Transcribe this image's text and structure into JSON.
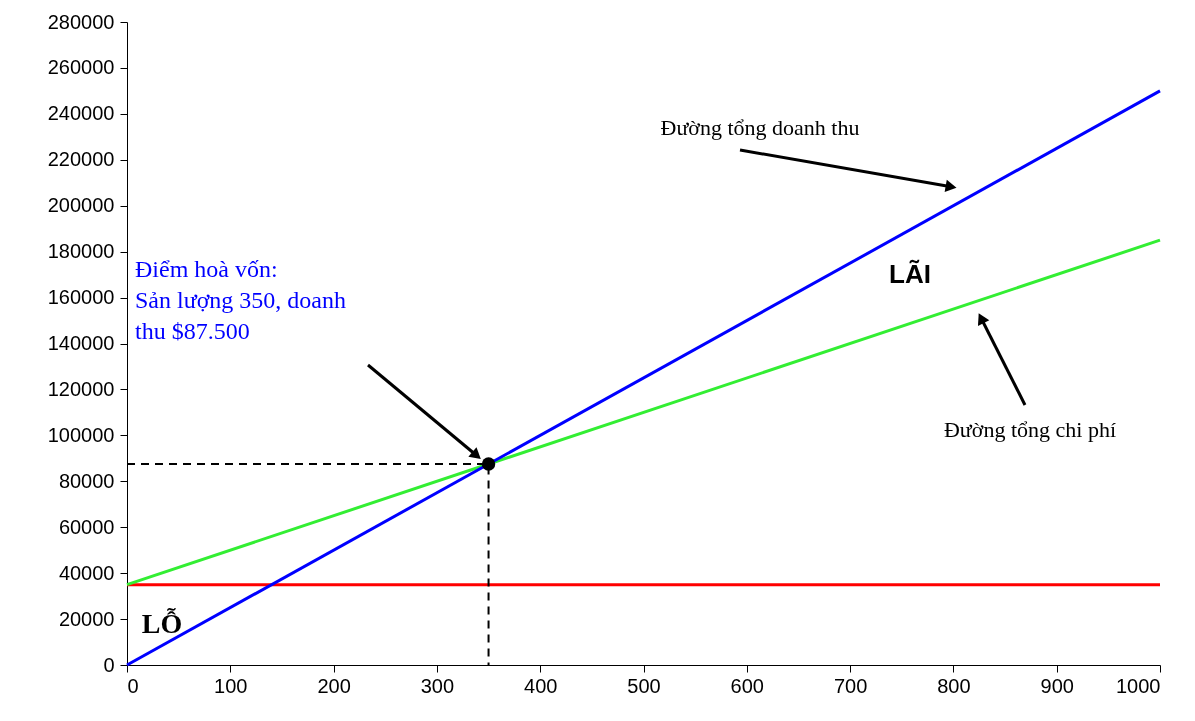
{
  "chart_data": {
    "type": "line",
    "xlim": [
      0,
      1000
    ],
    "xticks": [
      0,
      100,
      200,
      300,
      400,
      500,
      600,
      700,
      800,
      900,
      {
        "value": 1000,
        "label": "1000"
      }
    ],
    "ylim": [
      0,
      280000
    ],
    "yticks": [
      0,
      {
        "value": 20000,
        "label": "20000"
      },
      {
        "value": 40000,
        "label": "40000"
      },
      {
        "value": 60000,
        "label": "60000"
      },
      {
        "value": 80000,
        "label": "80000"
      },
      {
        "value": 100000,
        "label": "100000"
      },
      {
        "value": 120000,
        "label": "120000"
      },
      {
        "value": 140000,
        "label": "140000"
      },
      {
        "value": 160000,
        "label": "160000"
      },
      {
        "value": 180000,
        "label": "180000"
      },
      {
        "value": 200000,
        "label": "200000"
      },
      {
        "value": 220000,
        "label": "220000"
      },
      {
        "value": 240000,
        "label": "240000"
      },
      {
        "value": 260000,
        "label": "260000"
      },
      {
        "value": 280000,
        "label": "280000"
      }
    ],
    "grid": false,
    "series": [
      {
        "color": "#ff0000",
        "x": [
          0,
          1000
        ],
        "values": [
          35000,
          35000
        ]
      },
      {
        "color": "#33ee33",
        "x": [
          0,
          1000
        ],
        "values": [
          35000,
          185000
        ]
      },
      {
        "color": "#0000ff",
        "x": [
          0,
          1000
        ],
        "values": [
          0,
          250000
        ]
      },
      {
        "color": "#000000",
        "line_style": "dashed",
        "x": [
          0,
          350,
          350
        ],
        "values": [
          87500,
          87500,
          0
        ]
      },
      {
        "type": "scatter",
        "marker": "circle",
        "color": "#000000",
        "x": [
          350
        ],
        "values": [
          87500
        ]
      }
    ],
    "annotations": [
      "Điểm hoà vốn:\nSản lượng 350, doanh\nthu $87.500",
      "Đường tổng doanh thu",
      "Đường tổng chi phí",
      "LÃI",
      "LỖ"
    ]
  }
}
